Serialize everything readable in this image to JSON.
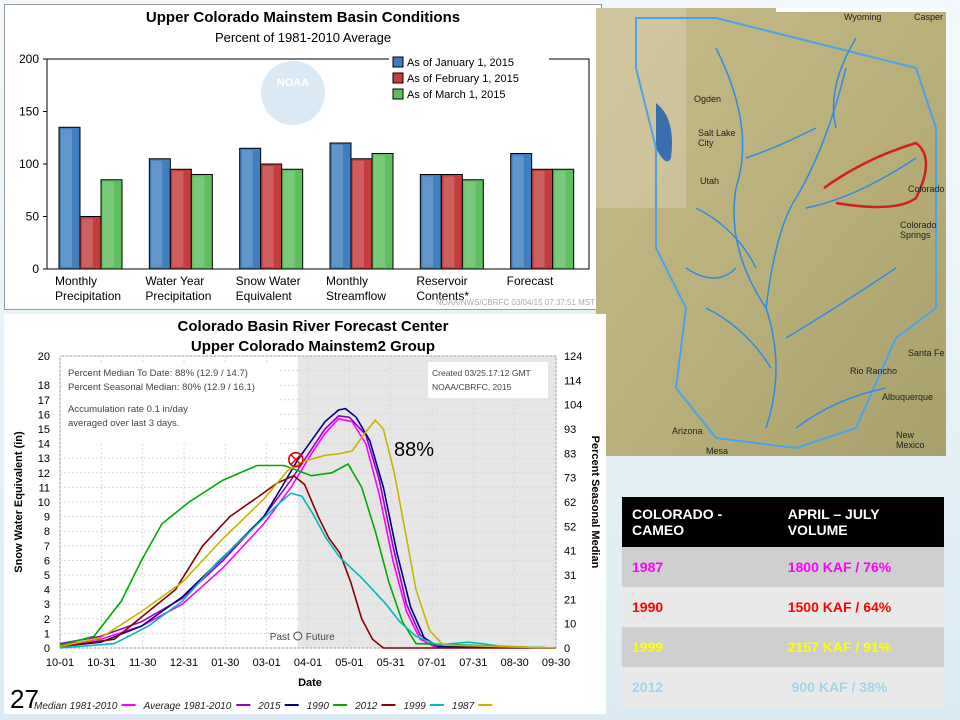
{
  "slide_number": "27",
  "chart_data": [
    {
      "type": "bar",
      "title": "Upper Colorado Mainstem Basin Conditions",
      "subtitle": "Percent of 1981-2010 Average",
      "categories": [
        "Monthly\nPrecipitation",
        "Water Year\nPrecipitation",
        "Snow Water\nEquivalent",
        "Monthly\nStreamflow",
        "Reservoir\nContents*",
        "Forecast"
      ],
      "series": [
        {
          "name": "As of January 1, 2015",
          "color": "#3f7fc0",
          "values": [
            135,
            105,
            115,
            120,
            90,
            110
          ]
        },
        {
          "name": "As of February 1, 2015",
          "color": "#c43c3c",
          "values": [
            50,
            95,
            100,
            105,
            90,
            95
          ]
        },
        {
          "name": "As of March 1, 2015",
          "color": "#5fbf5f",
          "values": [
            85,
            90,
            95,
            110,
            85,
            95
          ]
        }
      ],
      "ylim": [
        0,
        200
      ],
      "yticks": [
        0,
        50,
        100,
        150,
        200
      ],
      "legend": "top-right",
      "footer": "NOAA/NWS/CBRFC 03/04/15 07:37:51 MST"
    },
    {
      "type": "line",
      "title": "Colorado Basin River Forecast Center",
      "subtitle": "Upper Colorado Mainstem2 Group",
      "xlabel": "Date",
      "ylabel": "Snow Water Equivalent (in)",
      "ylabel_right": "Percent Seasonal Median",
      "ylim": [
        0,
        20
      ],
      "yticks": [
        0,
        1,
        2,
        3,
        4,
        5,
        6,
        7,
        8,
        9,
        10,
        11,
        12,
        13,
        14,
        15,
        16,
        17,
        18,
        20
      ],
      "yticks_right": [
        0,
        10,
        21,
        31,
        41,
        52,
        62,
        73,
        83,
        93,
        104,
        114,
        124
      ],
      "xticks": [
        "10-01",
        "10-31",
        "11-30",
        "12-31",
        "01-30",
        "03-01",
        "04-01",
        "05-01",
        "05-31",
        "07-01",
        "07-31",
        "08-30",
        "09-30"
      ],
      "notes": [
        "Percent Median To Date: 88% (12.9 / 14.7)",
        "Percent Seasonal Median: 80% (12.9 / 16.1)",
        "Accumulation rate 0.1 in/day",
        "averaged over last 3 days."
      ],
      "created": [
        "Created 03/25.17:12 GMT",
        "NOAA/CBRFC, 2015"
      ],
      "annotation": "88%",
      "past_label": "Past",
      "future_label": "Future",
      "series": [
        {
          "name": "Median 1981-2010",
          "color": "#ff00ff",
          "points": [
            [
              0,
              0.2
            ],
            [
              30,
              0.6
            ],
            [
              60,
              1.5
            ],
            [
              90,
              3
            ],
            [
              120,
              5.5
            ],
            [
              150,
              8.5
            ],
            [
              170,
              11
            ],
            [
              185,
              13.3
            ],
            [
              195,
              14.7
            ],
            [
              205,
              15.7
            ],
            [
              215,
              15.5
            ],
            [
              225,
              14
            ],
            [
              235,
              10.5
            ],
            [
              245,
              6
            ],
            [
              255,
              2.5
            ],
            [
              265,
              0.6
            ],
            [
              275,
              0.1
            ],
            [
              365,
              0
            ]
          ]
        },
        {
          "name": "Average 1981-2010",
          "color": "#9900cc",
          "points": [
            [
              0,
              0.3
            ],
            [
              30,
              0.8
            ],
            [
              60,
              1.8
            ],
            [
              90,
              3.4
            ],
            [
              120,
              6
            ],
            [
              150,
              9
            ],
            [
              170,
              11.5
            ],
            [
              185,
              13.6
            ],
            [
              195,
              15
            ],
            [
              205,
              15.9
            ],
            [
              213,
              15.8
            ],
            [
              225,
              14.6
            ],
            [
              235,
              11.5
            ],
            [
              245,
              7
            ],
            [
              255,
              3
            ],
            [
              265,
              0.9
            ],
            [
              275,
              0.2
            ],
            [
              365,
              0
            ]
          ]
        },
        {
          "name": "2015",
          "color": "#000080",
          "points": [
            [
              0,
              0.1
            ],
            [
              30,
              0.4
            ],
            [
              60,
              1.5
            ],
            [
              90,
              3.5
            ],
            [
              120,
              6.2
            ],
            [
              150,
              9
            ],
            [
              165,
              11.3
            ],
            [
              175,
              12.9
            ],
            [
              185,
              14.2
            ],
            [
              195,
              15.5
            ],
            [
              205,
              16.3
            ],
            [
              210,
              16.4
            ],
            [
              218,
              15.8
            ],
            [
              228,
              14.2
            ],
            [
              238,
              11
            ],
            [
              248,
              6.5
            ],
            [
              258,
              2.8
            ],
            [
              268,
              0.7
            ],
            [
              278,
              0.1
            ],
            [
              365,
              0
            ]
          ]
        },
        {
          "name": "1990",
          "color": "#00aa00",
          "points": [
            [
              0,
              0.2
            ],
            [
              25,
              0.8
            ],
            [
              45,
              3.2
            ],
            [
              60,
              6
            ],
            [
              75,
              8.5
            ],
            [
              95,
              10
            ],
            [
              120,
              11.5
            ],
            [
              145,
              12.5
            ],
            [
              165,
              12.5
            ],
            [
              185,
              11.8
            ],
            [
              200,
              12
            ],
            [
              212,
              12.6
            ],
            [
              222,
              11
            ],
            [
              232,
              8
            ],
            [
              242,
              4.5
            ],
            [
              252,
              1.8
            ],
            [
              262,
              0.3
            ],
            [
              365,
              0
            ]
          ]
        },
        {
          "name": "2012",
          "color": "#8b0000",
          "points": [
            [
              0,
              0.1
            ],
            [
              40,
              0.6
            ],
            [
              65,
              2.5
            ],
            [
              85,
              4
            ],
            [
              105,
              7
            ],
            [
              125,
              9
            ],
            [
              145,
              10.3
            ],
            [
              160,
              11.3
            ],
            [
              172,
              11.8
            ],
            [
              180,
              11.2
            ],
            [
              190,
              9
            ],
            [
              198,
              7.5
            ],
            [
              206,
              6.5
            ],
            [
              214,
              4.5
            ],
            [
              222,
              2
            ],
            [
              230,
              0.6
            ],
            [
              238,
              0
            ],
            [
              365,
              0
            ]
          ]
        },
        {
          "name": "1999",
          "color": "#00bbbb",
          "points": [
            [
              0,
              0
            ],
            [
              40,
              0.3
            ],
            [
              65,
              1.5
            ],
            [
              90,
              3.2
            ],
            [
              115,
              5.8
            ],
            [
              140,
              8
            ],
            [
              160,
              9.8
            ],
            [
              170,
              10.6
            ],
            [
              178,
              10.4
            ],
            [
              186,
              9.2
            ],
            [
              196,
              7.5
            ],
            [
              206,
              6.2
            ],
            [
              214,
              5.5
            ],
            [
              222,
              4.8
            ],
            [
              230,
              4
            ],
            [
              240,
              3
            ],
            [
              250,
              1.8
            ],
            [
              262,
              0.8
            ],
            [
              278,
              0.2
            ],
            [
              300,
              0.4
            ],
            [
              310,
              0.3
            ],
            [
              325,
              0.1
            ],
            [
              365,
              0
            ]
          ]
        },
        {
          "name": "1987",
          "color": "#c8b400",
          "points": [
            [
              0,
              0.1
            ],
            [
              30,
              0.7
            ],
            [
              60,
              2.5
            ],
            [
              90,
              4.5
            ],
            [
              120,
              7.5
            ],
            [
              150,
              10.2
            ],
            [
              168,
              12.2
            ],
            [
              180,
              12.8
            ],
            [
              195,
              13.2
            ],
            [
              205,
              13.3
            ],
            [
              215,
              13.5
            ],
            [
              225,
              14.8
            ],
            [
              232,
              15.6
            ],
            [
              238,
              15
            ],
            [
              246,
              12
            ],
            [
              254,
              8
            ],
            [
              262,
              4
            ],
            [
              272,
              1.2
            ],
            [
              282,
              0.2
            ],
            [
              365,
              0
            ]
          ]
        }
      ],
      "legend_items": [
        "Median 1981-2010",
        "Average 1981-2010",
        "2015",
        "1990",
        "2012",
        "1999",
        "1987"
      ],
      "legend_colors": [
        "#ff00ff",
        "#9900cc",
        "#000080",
        "#00aa00",
        "#8b0000",
        "#00bbbb",
        "#c8b400"
      ]
    }
  ],
  "map": {
    "labels": [
      "Wyoming",
      "Casper",
      "Ogden",
      "Salt Lake City",
      "Utah",
      "Colorado",
      "Colorado Springs",
      "Santa Fe",
      "Rio Rancho",
      "Albuquerque",
      "New Mexico",
      "Arizona",
      "Mesa"
    ]
  },
  "table": {
    "headers": [
      "COLORADO - CAMEO",
      "APRIL – JULY VOLUME"
    ],
    "rows": [
      {
        "year": "1987",
        "volume": "1800 KAF / 76%",
        "color": "#ff00ff"
      },
      {
        "year": "1990",
        "volume": "1500 KAF / 64%",
        "color": "#ff0000"
      },
      {
        "year": "1999",
        "volume": "2157 KAF / 91%",
        "color": "#ffff00"
      },
      {
        "year": "2012",
        "volume": " 900 KAF / 38%",
        "color": "#9fd4ea"
      }
    ]
  }
}
